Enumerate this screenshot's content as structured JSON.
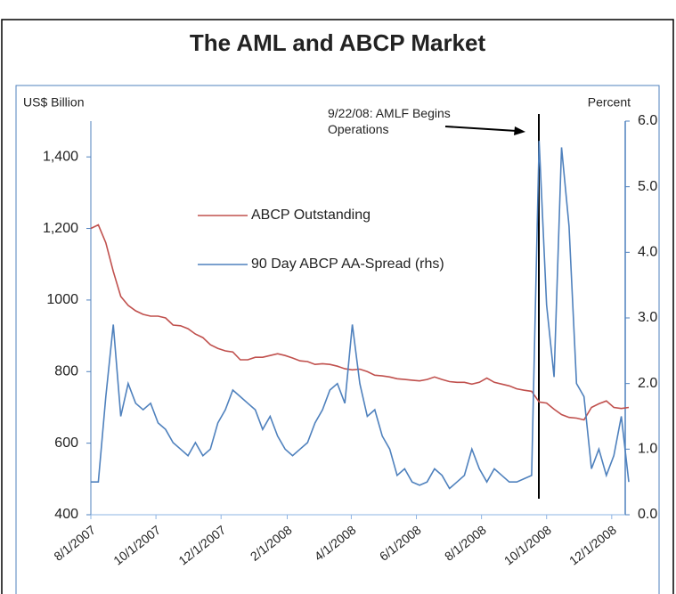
{
  "chart_data": {
    "type": "line",
    "title": "The AML and ABCP Market",
    "ylabel": "US$ Billion",
    "y2label": "Percent",
    "annotation": "9/22/08: AMLF Begins Operations",
    "x": [
      "8/1/2007",
      "8/8/2007",
      "8/15/2007",
      "8/22/2007",
      "8/29/2007",
      "9/5/2007",
      "9/12/2007",
      "9/19/2007",
      "9/26/2007",
      "10/3/2007",
      "10/10/2007",
      "10/17/2007",
      "10/24/2007",
      "10/31/2007",
      "11/7/2007",
      "11/14/2007",
      "11/21/2007",
      "11/28/2007",
      "12/5/2007",
      "12/12/2007",
      "12/19/2007",
      "12/26/2007",
      "1/2/2008",
      "1/9/2008",
      "1/16/2008",
      "1/23/2008",
      "1/30/2008",
      "2/6/2008",
      "2/13/2008",
      "2/20/2008",
      "2/27/2008",
      "3/5/2008",
      "3/12/2008",
      "3/19/2008",
      "3/26/2008",
      "4/2/2008",
      "4/9/2008",
      "4/16/2008",
      "4/23/2008",
      "4/30/2008",
      "5/7/2008",
      "5/14/2008",
      "5/21/2008",
      "5/28/2008",
      "6/4/2008",
      "6/11/2008",
      "6/18/2008",
      "6/25/2008",
      "7/2/2008",
      "7/9/2008",
      "7/16/2008",
      "7/23/2008",
      "7/30/2008",
      "8/6/2008",
      "8/13/2008",
      "8/20/2008",
      "8/27/2008",
      "9/3/2008",
      "9/10/2008",
      "9/17/2008",
      "9/24/2008",
      "10/1/2008",
      "10/8/2008",
      "10/15/2008",
      "10/22/2008",
      "10/29/2008",
      "11/5/2008",
      "11/12/2008",
      "11/19/2008",
      "11/26/2008",
      "12/3/2008",
      "12/10/2008",
      "12/17/2008"
    ],
    "series": [
      {
        "name": "ABCP Outstanding",
        "color": "#c0504d",
        "values": [
          1200,
          1210,
          1160,
          1080,
          1010,
          985,
          970,
          960,
          955,
          955,
          950,
          930,
          928,
          920,
          905,
          895,
          875,
          865,
          858,
          855,
          833,
          833,
          840,
          840,
          845,
          850,
          845,
          838,
          830,
          828,
          820,
          822,
          820,
          815,
          808,
          805,
          807,
          800,
          790,
          788,
          785,
          780,
          778,
          776,
          774,
          778,
          785,
          778,
          772,
          770,
          770,
          765,
          770,
          782,
          770,
          765,
          760,
          752,
          748,
          745,
          715,
          712,
          695,
          680,
          672,
          670,
          665,
          700,
          710,
          718,
          700,
          697,
          700
        ]
      },
      {
        "name": "90 Day ABCP AA-Spread (rhs)",
        "color": "#4f81bd",
        "axis": "y2",
        "values": [
          0.5,
          0.5,
          1.8,
          2.9,
          1.5,
          2.0,
          1.7,
          1.6,
          1.7,
          1.4,
          1.3,
          1.1,
          1.0,
          0.9,
          1.1,
          0.9,
          1.0,
          1.4,
          1.6,
          1.9,
          1.8,
          1.7,
          1.6,
          1.3,
          1.5,
          1.2,
          1.0,
          0.9,
          1.0,
          1.1,
          1.4,
          1.6,
          1.9,
          2.0,
          1.7,
          2.9,
          2.0,
          1.5,
          1.6,
          1.2,
          1.0,
          0.6,
          0.7,
          0.5,
          0.45,
          0.5,
          0.7,
          0.6,
          0.4,
          0.5,
          0.6,
          1.0,
          0.7,
          0.5,
          0.7,
          0.6,
          0.5,
          0.5,
          0.55,
          0.6,
          5.7,
          3.2,
          2.1,
          5.6,
          4.4,
          2.0,
          1.8,
          0.7,
          1.0,
          0.6,
          0.9,
          1.5,
          0.5
        ]
      }
    ],
    "xlim": [
      "8/1/2007",
      "12/17/2008"
    ],
    "xticks": [
      "8/1/2007",
      "10/1/2007",
      "12/1/2007",
      "2/1/2008",
      "4/1/2008",
      "6/1/2008",
      "8/1/2008",
      "10/1/2008",
      "12/1/2008"
    ],
    "ylim": [
      400,
      1500
    ],
    "yticks": [
      400,
      600,
      800,
      1000,
      {
        "value": 1200,
        "label": "1,200"
      },
      {
        "value": 1400,
        "label": "1,400"
      }
    ],
    "y2lim": [
      0,
      6
    ],
    "y2ticks": [
      {
        "value": 0,
        "label": "0.0"
      },
      {
        "value": 1,
        "label": "1.0"
      },
      {
        "value": 2,
        "label": "2.0"
      },
      {
        "value": 3,
        "label": "3.0"
      },
      {
        "value": 4,
        "label": "4.0"
      },
      {
        "value": 5,
        "label": "5.0"
      },
      {
        "value": 6,
        "label": "6.0"
      }
    ],
    "grid": false
  }
}
